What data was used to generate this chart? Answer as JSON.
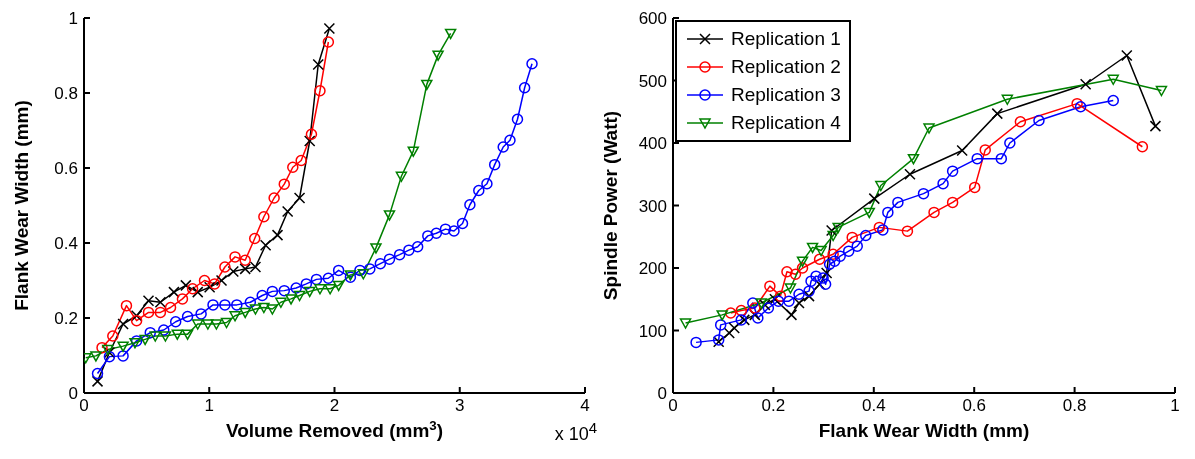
{
  "chart_data": [
    {
      "type": "line",
      "xlabel": "Volume Removed (mm$^{3}$)",
      "ylabel": "Flank Wear Width (mm)",
      "annotations": [
        "x 10$^{4}$"
      ],
      "xlim": [
        0,
        4
      ],
      "ylim": [
        0,
        1
      ],
      "xticks": [
        0,
        1,
        2,
        3,
        4
      ],
      "yticks": [
        0,
        0.2,
        0.4,
        0.6,
        0.8,
        1
      ],
      "grid": false,
      "legend": false,
      "series": [
        {
          "color": "#000000",
          "marker": "cross",
          "x": [
            0.108,
            0.203,
            0.312,
            0.42,
            0.515,
            0.61,
            0.718,
            0.813,
            0.908,
            1.003,
            1.098,
            1.192,
            1.287,
            1.369,
            1.45,
            1.545,
            1.626,
            1.721,
            1.802,
            1.87,
            1.959
          ],
          "values": [
            0.031,
            0.108,
            0.184,
            0.206,
            0.246,
            0.242,
            0.269,
            0.287,
            0.269,
            0.282,
            0.3,
            0.324,
            0.331,
            0.336,
            0.394,
            0.421,
            0.484,
            0.52,
            0.672,
            0.876,
            0.972
          ]
        },
        {
          "color": "#ff0000",
          "marker": "circle",
          "x": [
            0.144,
            0.23,
            0.339,
            0.42,
            0.515,
            0.61,
            0.691,
            0.786,
            0.867,
            0.962,
            1.043,
            1.125,
            1.206,
            1.287,
            1.363,
            1.436,
            1.518,
            1.599,
            1.667,
            1.734,
            1.816,
            1.884,
            1.951
          ],
          "values": [
            0.121,
            0.152,
            0.233,
            0.193,
            0.215,
            0.215,
            0.228,
            0.251,
            0.278,
            0.3,
            0.291,
            0.336,
            0.363,
            0.354,
            0.412,
            0.47,
            0.52,
            0.557,
            0.602,
            0.62,
            0.69,
            0.806,
            0.936
          ]
        },
        {
          "color": "#0000ff",
          "marker": "circle",
          "x": [
            0.108,
            0.203,
            0.312,
            0.42,
            0.529,
            0.637,
            0.732,
            0.827,
            0.935,
            1.03,
            1.125,
            1.22,
            1.328,
            1.423,
            1.504,
            1.599,
            1.694,
            1.775,
            1.856,
            1.951,
            2.033,
            2.127,
            2.203,
            2.282,
            2.366,
            2.439,
            2.52,
            2.594,
            2.664,
            2.745,
            2.813,
            2.886,
            2.954,
            3.022,
            3.081,
            3.152,
            3.217,
            3.279,
            3.347,
            3.401,
            3.461,
            3.518,
            3.577
          ],
          "values": [
            0.052,
            0.097,
            0.099,
            0.139,
            0.161,
            0.168,
            0.19,
            0.204,
            0.211,
            0.235,
            0.235,
            0.235,
            0.242,
            0.26,
            0.271,
            0.273,
            0.28,
            0.291,
            0.303,
            0.306,
            0.327,
            0.309,
            0.327,
            0.331,
            0.345,
            0.357,
            0.369,
            0.381,
            0.39,
            0.419,
            0.426,
            0.437,
            0.432,
            0.452,
            0.502,
            0.54,
            0.558,
            0.609,
            0.656,
            0.674,
            0.73,
            0.814,
            0.878
          ]
        },
        {
          "color": "#008000",
          "marker": "triangle",
          "x": [
            0.014,
            0.095,
            0.19,
            0.312,
            0.407,
            0.488,
            0.569,
            0.65,
            0.745,
            0.827,
            0.908,
            0.989,
            1.057,
            1.138,
            1.206,
            1.287,
            1.369,
            1.436,
            1.504,
            1.572,
            1.653,
            1.721,
            1.802,
            1.884,
            1.965,
            2.033,
            2.127,
            2.23,
            2.331,
            2.439,
            2.534,
            2.629,
            2.737,
            2.827,
            2.927
          ],
          "values": [
            0.094,
            0.099,
            0.116,
            0.125,
            0.134,
            0.143,
            0.152,
            0.152,
            0.157,
            0.157,
            0.184,
            0.184,
            0.184,
            0.188,
            0.206,
            0.215,
            0.224,
            0.228,
            0.224,
            0.242,
            0.251,
            0.26,
            0.271,
            0.278,
            0.278,
            0.287,
            0.315,
            0.318,
            0.387,
            0.475,
            0.578,
            0.645,
            0.823,
            0.901,
            0.959
          ]
        }
      ]
    },
    {
      "type": "line",
      "xlabel": "Flank Wear Width (mm)",
      "ylabel": "Spindle Power (Watt)",
      "xlim": [
        0,
        1
      ],
      "ylim": [
        0,
        600
      ],
      "xticks": [
        0,
        0.2,
        0.4,
        0.6,
        0.8,
        1
      ],
      "yticks": [
        0,
        100,
        200,
        300,
        400,
        500,
        600
      ],
      "grid": false,
      "legend": "top left",
      "series": [
        {
          "name": "Replication 1",
          "color": "#000000",
          "marker": "cross",
          "x": [
            0.091,
            0.112,
            0.122,
            0.142,
            0.163,
            0.183,
            0.203,
            0.236,
            0.251,
            0.271,
            0.292,
            0.306,
            0.316,
            0.401,
            0.472,
            0.576,
            0.646,
            0.822,
            0.904,
            0.961
          ],
          "values": [
            82,
            96,
            104,
            117,
            125,
            141,
            150,
            125,
            144,
            155,
            174,
            192,
            260,
            311,
            350,
            388,
            447,
            494,
            540,
            427
          ]
        },
        {
          "name": "Replication 2",
          "color": "#ff0000",
          "marker": "circle",
          "x": [
            0.115,
            0.136,
            0.163,
            0.193,
            0.214,
            0.227,
            0.244,
            0.258,
            0.292,
            0.319,
            0.357,
            0.411,
            0.467,
            0.52,
            0.557,
            0.601,
            0.622,
            0.692,
            0.805,
            0.935
          ],
          "values": [
            128,
            132,
            136,
            171,
            155,
            194,
            190,
            200,
            214,
            222,
            249,
            265,
            259,
            289,
            305,
            329,
            389,
            434,
            463,
            394
          ]
        },
        {
          "name": "Replication 3",
          "color": "#0000ff",
          "marker": "circle",
          "x": [
            0.046,
            0.091,
            0.095,
            0.136,
            0.159,
            0.169,
            0.19,
            0.21,
            0.231,
            0.251,
            0.271,
            0.275,
            0.285,
            0.299,
            0.304,
            0.312,
            0.322,
            0.333,
            0.35,
            0.367,
            0.384,
            0.418,
            0.428,
            0.448,
            0.499,
            0.538,
            0.557,
            0.606,
            0.654,
            0.671,
            0.729,
            0.812,
            0.877
          ],
          "values": [
            81,
            85,
            109,
            117,
            144,
            120,
            136,
            147,
            147,
            158,
            163,
            179,
            187,
            184,
            174,
            206,
            211,
            219,
            227,
            235,
            252,
            261,
            289,
            305,
            319,
            335,
            355,
            375,
            375,
            400,
            436,
            458,
            468
          ]
        },
        {
          "name": "Replication 4",
          "color": "#008000",
          "marker": "triangle",
          "x": [
            0.025,
            0.098,
            0.176,
            0.234,
            0.258,
            0.278,
            0.295,
            0.319,
            0.329,
            0.391,
            0.414,
            0.479,
            0.51,
            0.666,
            0.877,
            0.973
          ],
          "values": [
            112,
            125,
            144,
            168,
            211,
            233,
            228,
            252,
            265,
            289,
            332,
            375,
            424,
            470,
            502,
            484
          ]
        }
      ]
    }
  ]
}
